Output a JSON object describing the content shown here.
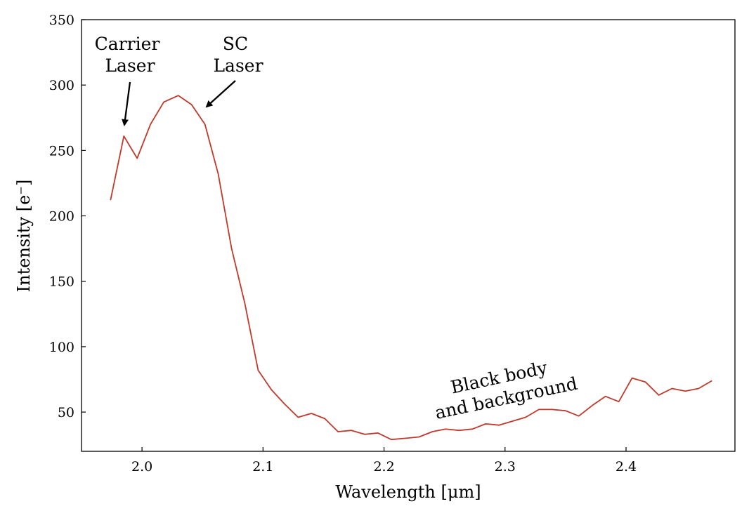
{
  "chart_data": {
    "type": "line",
    "xlabel": "Wavelength [μm]",
    "ylabel": "Intensity [e⁻]",
    "xlim": [
      1.95,
      2.49
    ],
    "ylim": [
      20,
      350
    ],
    "xticks": [
      2.0,
      2.1,
      2.2,
      2.3,
      2.4
    ],
    "xtick_labels": [
      "2.0",
      "2.1",
      "2.2",
      "2.3",
      "2.4"
    ],
    "yticks": [
      50,
      100,
      150,
      200,
      250,
      300,
      350
    ],
    "ytick_labels": [
      "50",
      "100",
      "150",
      "200",
      "250",
      "300",
      "350"
    ],
    "series": [
      {
        "name": "spectrum",
        "color": "#c0392b",
        "x": [
          1.974,
          1.985,
          1.996,
          2.007,
          2.018,
          2.03,
          2.041,
          2.052,
          2.063,
          2.074,
          2.085,
          2.096,
          2.107,
          2.118,
          2.129,
          2.14,
          2.151,
          2.162,
          2.173,
          2.184,
          2.195,
          2.206,
          2.218,
          2.229,
          2.24,
          2.251,
          2.262,
          2.273,
          2.284,
          2.295,
          2.306,
          2.317,
          2.328,
          2.339,
          2.35,
          2.361,
          2.372,
          2.383,
          2.394,
          2.405,
          2.416,
          2.427,
          2.438,
          2.449,
          2.46,
          2.471
        ],
        "y": [
          212,
          261,
          244,
          270,
          287,
          292,
          285,
          270,
          232,
          175,
          133,
          82,
          67,
          56,
          46,
          49,
          45,
          35,
          36,
          33,
          34,
          29,
          30,
          31,
          35,
          37,
          36,
          37,
          41,
          40,
          43,
          46,
          52,
          52,
          51,
          47,
          55,
          62,
          58,
          76,
          73,
          63,
          68,
          66,
          68,
          74
        ]
      }
    ],
    "annotations": [
      {
        "name": "carrier-laser",
        "lines": [
          "Carrier",
          "Laser"
        ],
        "points_to": [
          1.985,
          266
        ]
      },
      {
        "name": "sc-laser",
        "lines": [
          "SC",
          "Laser"
        ],
        "points_to": [
          2.052,
          281
        ]
      },
      {
        "name": "black-body",
        "lines": [
          "Black body",
          "and background"
        ]
      }
    ]
  }
}
